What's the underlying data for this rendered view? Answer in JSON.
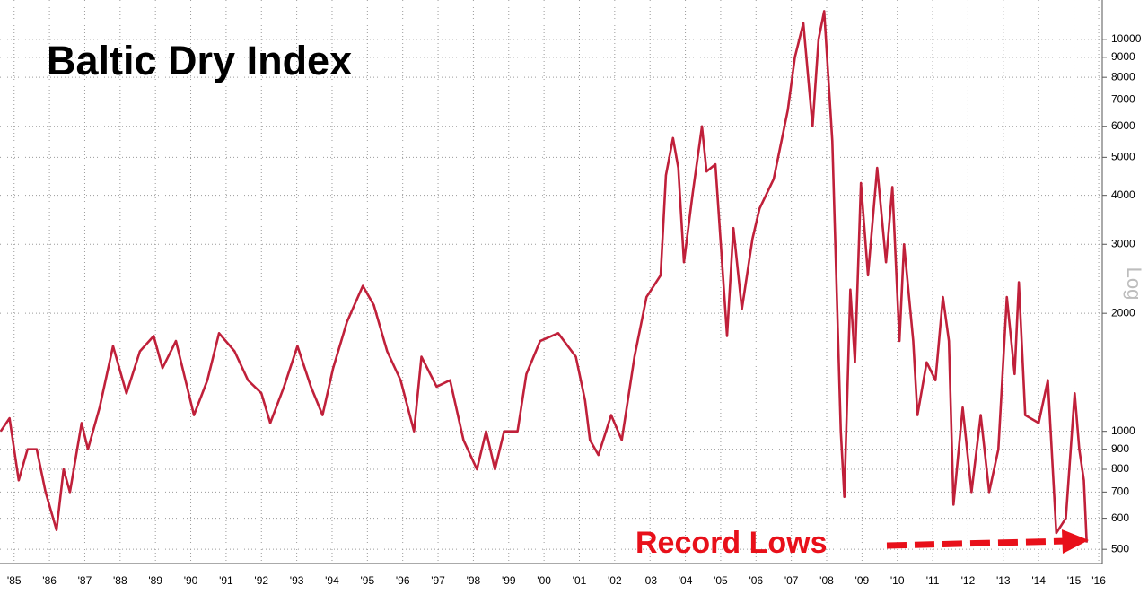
{
  "chart_data": {
    "type": "line",
    "title": "Baltic Dry Index",
    "y_axis_label": "Log",
    "annotation": "Record Lows",
    "log_scale": true,
    "grid": true,
    "color": "#c0203a",
    "annotation_color": "#e8101a",
    "xlim": [
      1985.1,
      2016.3
    ],
    "ylim": [
      460,
      12600
    ],
    "yticks": [
      500,
      600,
      700,
      800,
      900,
      1000,
      2000,
      3000,
      4000,
      5000,
      6000,
      7000,
      8000,
      9000,
      10000
    ],
    "xticks": [
      {
        "value": 1985.5,
        "label": "'85"
      },
      {
        "value": 1986.5,
        "label": "'86"
      },
      {
        "value": 1987.5,
        "label": "'87"
      },
      {
        "value": 1988.5,
        "label": "'88"
      },
      {
        "value": 1989.5,
        "label": "'89"
      },
      {
        "value": 1990.5,
        "label": "'90"
      },
      {
        "value": 1991.5,
        "label": "'91"
      },
      {
        "value": 1992.5,
        "label": "'92"
      },
      {
        "value": 1993.5,
        "label": "'93"
      },
      {
        "value": 1994.5,
        "label": "'94"
      },
      {
        "value": 1995.5,
        "label": "'95"
      },
      {
        "value": 1996.5,
        "label": "'96"
      },
      {
        "value": 1997.5,
        "label": "'97"
      },
      {
        "value": 1998.5,
        "label": "'98"
      },
      {
        "value": 1999.5,
        "label": "'99"
      },
      {
        "value": 2000.5,
        "label": "'00"
      },
      {
        "value": 2001.5,
        "label": "'01"
      },
      {
        "value": 2002.5,
        "label": "'02"
      },
      {
        "value": 2003.5,
        "label": "'03"
      },
      {
        "value": 2004.5,
        "label": "'04"
      },
      {
        "value": 2005.5,
        "label": "'05"
      },
      {
        "value": 2006.5,
        "label": "'06"
      },
      {
        "value": 2007.5,
        "label": "'07"
      },
      {
        "value": 2008.5,
        "label": "'08"
      },
      {
        "value": 2009.5,
        "label": "'09"
      },
      {
        "value": 2010.5,
        "label": "'10"
      },
      {
        "value": 2011.5,
        "label": "'11"
      },
      {
        "value": 2012.5,
        "label": "'12"
      },
      {
        "value": 2013.5,
        "label": "'13"
      },
      {
        "value": 2014.5,
        "label": "'14"
      },
      {
        "value": 2015.5,
        "label": "'15"
      },
      {
        "value": 2016.2,
        "label": "'16"
      }
    ],
    "x": [
      1985.12,
      1985.37,
      1985.63,
      1985.88,
      1986.14,
      1986.39,
      1986.7,
      1986.9,
      1987.08,
      1987.41,
      1987.59,
      1987.92,
      1988.3,
      1988.68,
      1989.06,
      1989.45,
      1989.7,
      1990.08,
      1990.59,
      1990.97,
      1991.3,
      1991.74,
      1992.12,
      1992.5,
      1992.75,
      1993.14,
      1993.52,
      1993.9,
      1994.23,
      1994.53,
      1994.92,
      1995.37,
      1995.68,
      1996.06,
      1996.44,
      1996.82,
      1997.03,
      1997.46,
      1997.84,
      1998.22,
      1998.6,
      1998.86,
      1999.11,
      1999.37,
      1999.75,
      2000.0,
      2000.39,
      2000.9,
      2001.4,
      2001.66,
      2001.8,
      2002.04,
      2002.4,
      2002.7,
      2003.06,
      2003.4,
      2003.8,
      2003.95,
      2004.15,
      2004.3,
      2004.46,
      2004.7,
      2004.97,
      2005.1,
      2005.35,
      2005.68,
      2005.86,
      2006.1,
      2006.4,
      2006.6,
      2007.0,
      2007.4,
      2007.6,
      2007.84,
      2008.1,
      2008.27,
      2008.43,
      2008.66,
      2008.9,
      2009.0,
      2009.17,
      2009.3,
      2009.47,
      2009.67,
      2009.93,
      2010.18,
      2010.36,
      2010.56,
      2010.69,
      2010.95,
      2011.07,
      2011.33,
      2011.58,
      2011.79,
      2011.96,
      2012.09,
      2012.35,
      2012.6,
      2012.86,
      2013.1,
      2013.36,
      2013.6,
      2013.82,
      2013.94,
      2014.12,
      2014.5,
      2014.76,
      2015.0,
      2015.27,
      2015.52,
      2015.65,
      2015.78,
      2015.86
    ],
    "values": [
      1000,
      1080,
      750,
      900,
      900,
      700,
      560,
      800,
      700,
      1050,
      900,
      1150,
      1650,
      1250,
      1600,
      1750,
      1450,
      1700,
      1100,
      1350,
      1780,
      1600,
      1350,
      1250,
      1050,
      1300,
      1650,
      1300,
      1100,
      1450,
      1900,
      2350,
      2100,
      1600,
      1350,
      1000,
      1550,
      1300,
      1350,
      950,
      800,
      1000,
      800,
      1000,
      1000,
      1400,
      1700,
      1780,
      1550,
      1200,
      950,
      870,
      1100,
      950,
      1550,
      2200,
      2500,
      4500,
      5600,
      4700,
      2700,
      4000,
      6000,
      4600,
      4800,
      1750,
      3300,
      2050,
      3100,
      3700,
      4400,
      6600,
      9000,
      11000,
      6000,
      10000,
      11800,
      5500,
      1000,
      680,
      2300,
      1500,
      4300,
      2500,
      4700,
      2700,
      4200,
      1700,
      3000,
      1700,
      1100,
      1500,
      1350,
      2200,
      1700,
      650,
      1150,
      700,
      1100,
      700,
      900,
      2200,
      1400,
      2400,
      1100,
      1050,
      1350,
      550,
      600,
      1250,
      900,
      750,
      520
    ]
  }
}
